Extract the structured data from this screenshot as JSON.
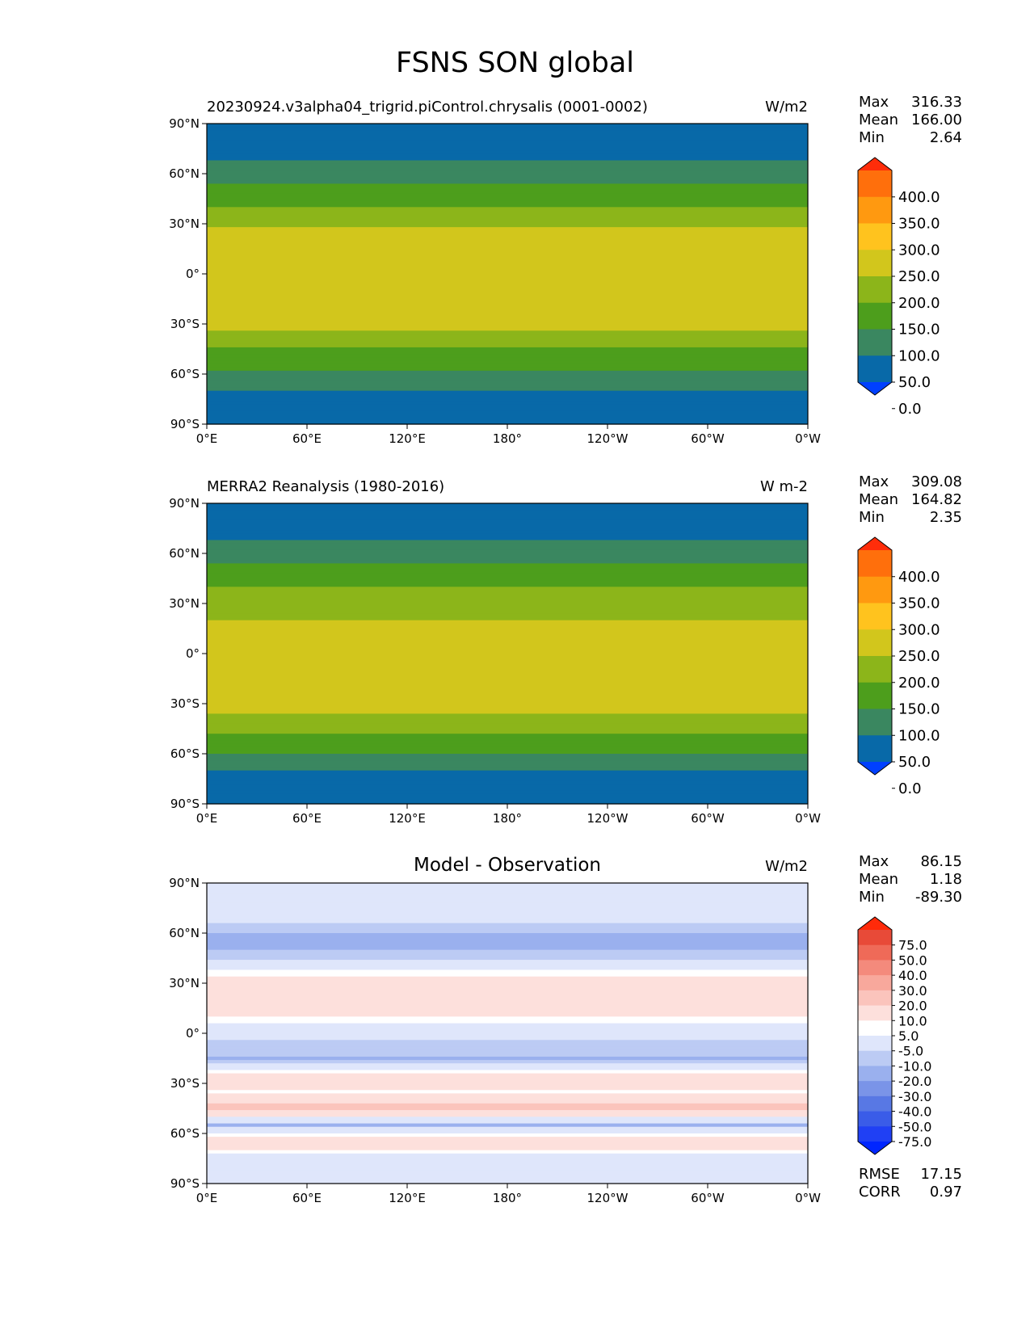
{
  "title": "FSNS SON global",
  "panels": [
    {
      "id": "test",
      "title": "20230924.v3alpha04_trigrid.piControl.chrysalis (0001-0002)",
      "units": "W/m2",
      "center_title": "",
      "stats": [
        {
          "label": "Max",
          "value": "316.33"
        },
        {
          "label": "Mean",
          "value": "166.00"
        },
        {
          "label": "Min",
          "value": "2.64"
        }
      ],
      "colorbar": {
        "labels": [
          "400.0",
          "350.0",
          "300.0",
          "250.0",
          "200.0",
          "150.0",
          "100.0",
          "50.0",
          "0.0"
        ],
        "colors": [
          "#0040ff",
          "#0869a8",
          "#3a8760",
          "#4d9e1c",
          "#8cb51a",
          "#d2c61c",
          "#ffc31e",
          "#ff9910",
          "#ff6f0c",
          "#ff2d0a"
        ]
      }
    },
    {
      "id": "reference",
      "title": "MERRA2 Reanalysis (1980-2016)",
      "units": "W m-2",
      "center_title": "",
      "stats": [
        {
          "label": "Max",
          "value": "309.08"
        },
        {
          "label": "Mean",
          "value": "164.82"
        },
        {
          "label": "Min",
          "value": "2.35"
        }
      ],
      "colorbar": {
        "labels": [
          "400.0",
          "350.0",
          "300.0",
          "250.0",
          "200.0",
          "150.0",
          "100.0",
          "50.0",
          "0.0"
        ],
        "colors": [
          "#0040ff",
          "#0869a8",
          "#3a8760",
          "#4d9e1c",
          "#8cb51a",
          "#d2c61c",
          "#ffc31e",
          "#ff9910",
          "#ff6f0c",
          "#ff2d0a"
        ]
      }
    },
    {
      "id": "difference",
      "title": "",
      "units": "W/m2",
      "center_title": "Model - Observation",
      "stats": [
        {
          "label": "Max",
          "value": "86.15"
        },
        {
          "label": "Mean",
          "value": "1.18"
        },
        {
          "label": "Min",
          "value": "-89.30"
        }
      ],
      "metrics": [
        {
          "label": "RMSE",
          "value": "17.15"
        },
        {
          "label": "CORR",
          "value": "0.97"
        }
      ],
      "colorbar": {
        "labels": [
          "75.0",
          "50.0",
          "40.0",
          "30.0",
          "20.0",
          "10.0",
          "5.0",
          "-5.0",
          "-10.0",
          "-20.0",
          "-30.0",
          "-40.0",
          "-50.0",
          "-75.0"
        ],
        "colors": [
          "#0026ff",
          "#2040f4",
          "#3a5ce8",
          "#5878e4",
          "#7a94e8",
          "#9ab0ee",
          "#bccbf4",
          "#dfe6fb",
          "#ffffff",
          "#fde0dc",
          "#fbc4bc",
          "#f8a89c",
          "#f48a7c",
          "#ef6a58",
          "#e84a38",
          "#ff2a0a"
        ]
      }
    }
  ],
  "chart_data": {
    "type": "heatmap",
    "title": "FSNS SON global",
    "x_ticks": [
      "0°E",
      "60°E",
      "120°E",
      "180°",
      "120°W",
      "60°W",
      "0°W"
    ],
    "y_ticks": [
      "90°N",
      "60°N",
      "30°N",
      "0°",
      "30°S",
      "60°S",
      "90°S"
    ],
    "xlim": [
      0,
      360
    ],
    "ylim": [
      -90,
      90
    ],
    "fields": [
      {
        "name": "20230924.v3alpha04_trigrid.piControl.chrysalis (0001-0002)",
        "units": "W/m2",
        "levels": [
          0,
          50,
          100,
          150,
          200,
          250,
          300,
          350,
          400
        ],
        "zonal_mean_profile": {
          "lat": [
            90,
            75,
            65,
            55,
            45,
            35,
            25,
            15,
            5,
            -5,
            -15,
            -25,
            -35,
            -45,
            -55,
            -65,
            -75,
            -90
          ],
          "value": [
            10,
            25,
            60,
            95,
            130,
            175,
            215,
            225,
            240,
            245,
            240,
            230,
            200,
            150,
            120,
            70,
            30,
            10
          ]
        }
      },
      {
        "name": "MERRA2 Reanalysis (1980-2016)",
        "units": "W m-2",
        "levels": [
          0,
          50,
          100,
          150,
          200,
          250,
          300,
          350,
          400
        ],
        "zonal_mean_profile": {
          "lat": [
            90,
            75,
            65,
            55,
            45,
            35,
            25,
            15,
            5,
            -5,
            -15,
            -25,
            -35,
            -45,
            -55,
            -65,
            -75,
            -90
          ],
          "value": [
            10,
            25,
            60,
            100,
            135,
            165,
            195,
            205,
            230,
            240,
            245,
            235,
            205,
            160,
            125,
            75,
            30,
            10
          ]
        }
      },
      {
        "name": "Model - Observation",
        "units": "W/m2",
        "levels": [
          -75,
          -50,
          -40,
          -30,
          -20,
          -10,
          -5,
          5,
          10,
          20,
          30,
          40,
          50,
          75
        ],
        "zonal_mean_profile": {
          "lat": [
            90,
            75,
            65,
            55,
            45,
            35,
            25,
            15,
            5,
            -5,
            -15,
            -25,
            -35,
            -45,
            -55,
            -65,
            -75,
            -90
          ],
          "value": [
            0,
            0,
            -5,
            -15,
            -5,
            10,
            15,
            15,
            5,
            -5,
            -10,
            15,
            10,
            25,
            -10,
            20,
            0,
            0
          ]
        }
      }
    ]
  }
}
